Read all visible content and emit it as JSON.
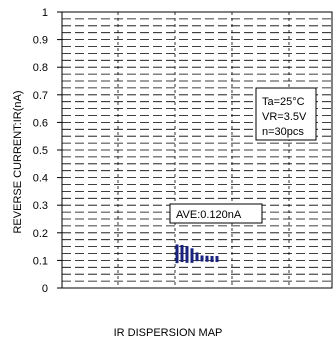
{
  "chart_data": {
    "type": "scatter",
    "ylabel": "REVERSE CURRENT:IR(nA)",
    "ylim": [
      0,
      1
    ],
    "yticks": [
      "0",
      "0.1",
      "0.2",
      "0.3",
      "0.4",
      "0.5",
      "0.6",
      "0.7",
      "0.8",
      "0.9",
      "1"
    ],
    "grid": true,
    "conditions": [
      "Ta=25°C",
      "VR=3.5V",
      "n=30pcs"
    ],
    "average_label": "AVE:0.120nA",
    "points": [
      {
        "x": 0.0,
        "y": 0.147
      },
      {
        "x": 0.0,
        "y": 0.14
      },
      {
        "x": 0.0,
        "y": 0.132
      },
      {
        "x": 0.0,
        "y": 0.124
      },
      {
        "x": 0.0,
        "y": 0.116
      },
      {
        "x": 0.0,
        "y": 0.108
      },
      {
        "x": 0.0,
        "y": 0.101
      },
      {
        "x": 0.1,
        "y": 0.145
      },
      {
        "x": 0.1,
        "y": 0.137
      },
      {
        "x": 0.1,
        "y": 0.129
      },
      {
        "x": 0.1,
        "y": 0.121
      },
      {
        "x": 0.1,
        "y": 0.113
      },
      {
        "x": 0.1,
        "y": 0.105
      },
      {
        "x": 0.2,
        "y": 0.141
      },
      {
        "x": 0.2,
        "y": 0.133
      },
      {
        "x": 0.2,
        "y": 0.125
      },
      {
        "x": 0.2,
        "y": 0.117
      },
      {
        "x": 0.2,
        "y": 0.109
      },
      {
        "x": 0.2,
        "y": 0.102
      },
      {
        "x": 0.3,
        "y": 0.133
      },
      {
        "x": 0.3,
        "y": 0.125
      },
      {
        "x": 0.3,
        "y": 0.117
      },
      {
        "x": 0.3,
        "y": 0.109
      },
      {
        "x": 0.3,
        "y": 0.102
      },
      {
        "x": 0.4,
        "y": 0.118
      },
      {
        "x": 0.4,
        "y": 0.108
      },
      {
        "x": 0.5,
        "y": 0.107
      },
      {
        "x": 0.6,
        "y": 0.106
      },
      {
        "x": 0.7,
        "y": 0.105
      },
      {
        "x": 0.8,
        "y": 0.105
      }
    ],
    "marker_color": "#1a237e"
  },
  "caption": "IR DISPERSION MAP"
}
